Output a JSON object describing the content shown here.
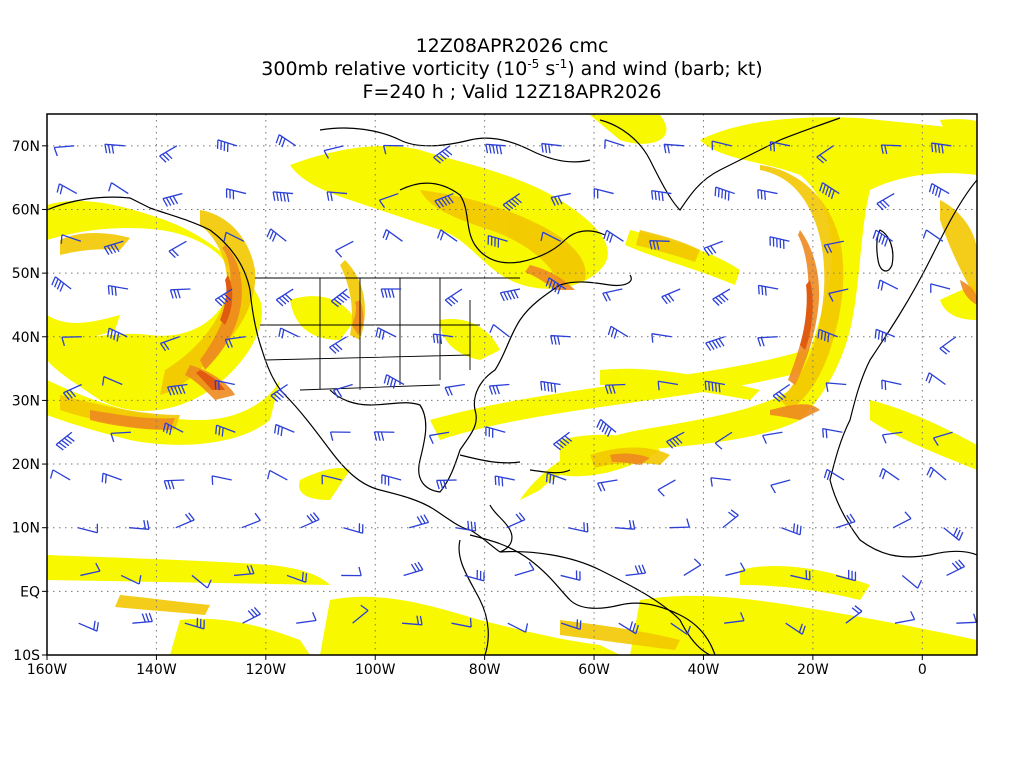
{
  "titles": {
    "line1": "12Z08APR2026 cmc",
    "line2_pre": "300mb relative vorticity (10",
    "line2_exp1": "-5",
    "line2_mid": " s",
    "line2_exp2": "-1",
    "line2_post": ") and wind (barb; kt)",
    "line3": "F=240 h ; Valid 12Z18APR2026"
  },
  "map": {
    "type": "weather map",
    "projection": "cylindrical equidistant",
    "lon_range": [
      -160,
      10
    ],
    "lat_range": [
      -10,
      75
    ],
    "grid": "dotted",
    "barb_color": "#2b3fd6",
    "coastline_color": "#000000",
    "shading_colors": [
      "#f8f800",
      "#f2d000",
      "#f0a020",
      "#ee7a20",
      "#e05a10"
    ]
  },
  "axes": {
    "x_ticks": [
      {
        "lon": -160,
        "label": "160W"
      },
      {
        "lon": -140,
        "label": "140W"
      },
      {
        "lon": -120,
        "label": "120W"
      },
      {
        "lon": -100,
        "label": "100W"
      },
      {
        "lon": -80,
        "label": "80W"
      },
      {
        "lon": -60,
        "label": "60W"
      },
      {
        "lon": -40,
        "label": "40W"
      },
      {
        "lon": -20,
        "label": "20W"
      },
      {
        "lon": 0,
        "label": "0"
      }
    ],
    "y_ticks": [
      {
        "lat": -10,
        "label": "10S"
      },
      {
        "lat": 0,
        "label": "EQ"
      },
      {
        "lat": 10,
        "label": "10N"
      },
      {
        "lat": 20,
        "label": "20N"
      },
      {
        "lat": 30,
        "label": "30N"
      },
      {
        "lat": 40,
        "label": "40N"
      },
      {
        "lat": 50,
        "label": "50N"
      },
      {
        "lat": 60,
        "label": "60N"
      },
      {
        "lat": 70,
        "label": "70N"
      }
    ]
  }
}
